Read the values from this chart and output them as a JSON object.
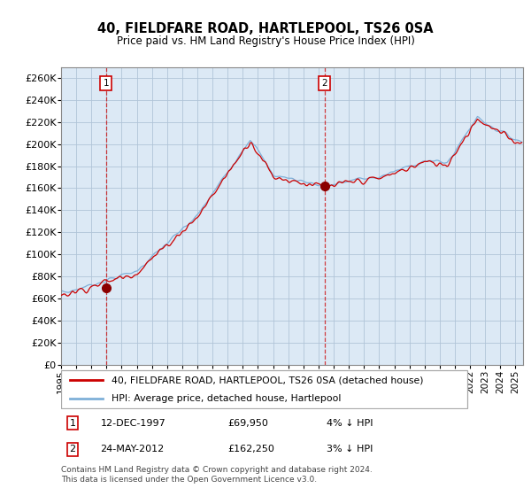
{
  "title": "40, FIELDFARE ROAD, HARTLEPOOL, TS26 0SA",
  "subtitle": "Price paid vs. HM Land Registry's House Price Index (HPI)",
  "ylim": [
    0,
    270000
  ],
  "yticks": [
    0,
    20000,
    40000,
    60000,
    80000,
    100000,
    120000,
    140000,
    160000,
    180000,
    200000,
    220000,
    240000,
    260000
  ],
  "ytick_labels": [
    "£0",
    "£20K",
    "£40K",
    "£60K",
    "£80K",
    "£100K",
    "£120K",
    "£140K",
    "£160K",
    "£180K",
    "£200K",
    "£220K",
    "£240K",
    "£260K"
  ],
  "sale1_date": 1997.96,
  "sale1_price": 69950,
  "sale1_label": "1",
  "sale2_date": 2012.39,
  "sale2_price": 162250,
  "sale2_label": "2",
  "red_line_color": "#cc0000",
  "blue_line_color": "#7fb0d8",
  "plot_bg_color": "#dce9f5",
  "vline_color": "#cc0000",
  "marker_color": "#8b0000",
  "annotation_box_color": "#cc0000",
  "grid_color": "#b0c4d8",
  "legend_label_red": "40, FIELDFARE ROAD, HARTLEPOOL, TS26 0SA (detached house)",
  "legend_label_blue": "HPI: Average price, detached house, Hartlepool",
  "footer": "Contains HM Land Registry data © Crown copyright and database right 2024.\nThis data is licensed under the Open Government Licence v3.0.",
  "xmin": 1995.0,
  "xmax": 2025.5
}
